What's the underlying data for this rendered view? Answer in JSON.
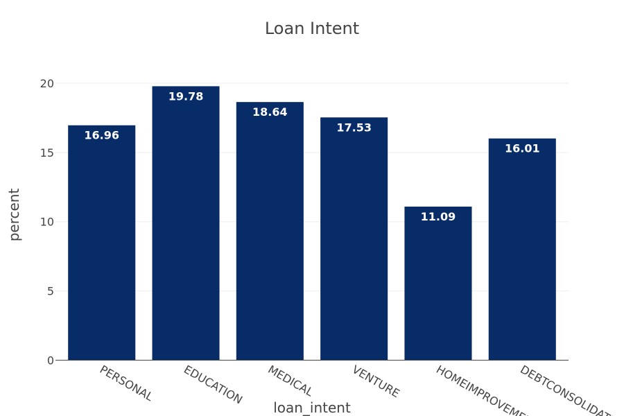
{
  "chart_data": {
    "type": "bar",
    "title": "Loan Intent",
    "xlabel": "loan_intent",
    "ylabel": "percent",
    "categories": [
      "PERSONAL",
      "EDUCATION",
      "MEDICAL",
      "VENTURE",
      "HOMEIMPROVEMENT",
      "DEBTCONSOLIDATION"
    ],
    "values": [
      16.96,
      19.78,
      18.64,
      17.53,
      11.09,
      16.01
    ],
    "data_labels": [
      "16.96",
      "19.78",
      "18.64",
      "17.53",
      "11.09",
      "16.01"
    ],
    "yticks": [
      0,
      5,
      10,
      15,
      20
    ],
    "ytick_labels": [
      "0",
      "5",
      "10",
      "15",
      "20"
    ],
    "ylim": [
      0,
      20.2
    ],
    "bar_color": "#072c67",
    "grid": true,
    "legend": "none"
  }
}
